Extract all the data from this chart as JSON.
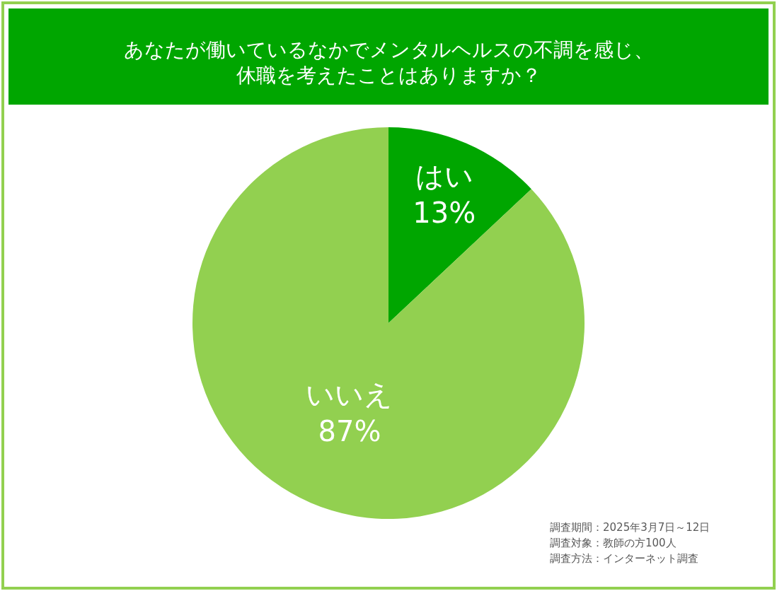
{
  "chart_data": {
    "type": "pie",
    "title": "あなたが働いているなかでメンタルヘルスの不調を感じ、休職を考えたことはありますか？",
    "categories": [
      "はい",
      "いいえ"
    ],
    "values": [
      13,
      87
    ],
    "value_labels": [
      "13%",
      "87%"
    ],
    "colors": [
      "#00a600",
      "#92d050"
    ],
    "annotations": [
      "調査期間：2025年3月7日～12日",
      "調査対象：教師の方100人",
      "調査方法：インターネット調査"
    ],
    "legend": false
  }
}
